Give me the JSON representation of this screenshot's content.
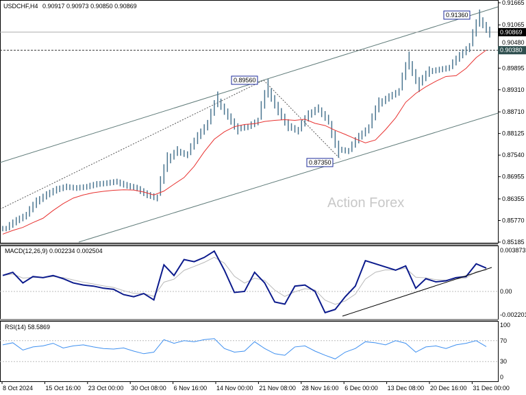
{
  "header": {
    "symbol": "USDCHF,H4",
    "ohlc": "0.90917 0.90973 0.90850 0.90869"
  },
  "watermark": "Action Forex",
  "chart_data": [
    {
      "type": "line",
      "panel": "price",
      "ylim": [
        0.85185,
        0.91665
      ],
      "y_ticks": [
        "0.91665",
        "0.91065",
        "0.90480",
        "0.89895",
        "0.89310",
        "0.88710",
        "0.88125",
        "0.87540",
        "0.86955",
        "0.86355",
        "0.85770",
        "0.85185"
      ],
      "current_price": "0.90869",
      "level_price": "0.90380",
      "annotations": [
        "0.91360",
        "0.89560",
        "0.87350"
      ],
      "close": [
        0.8555,
        0.8575,
        0.859,
        0.8625,
        0.8645,
        0.866,
        0.8668,
        0.8665,
        0.8668,
        0.8675,
        0.8678,
        0.8682,
        0.8672,
        0.8665,
        0.8648,
        0.8638,
        0.8735,
        0.8765,
        0.8755,
        0.88,
        0.8835,
        0.8905,
        0.8865,
        0.8825,
        0.883,
        0.8845,
        0.8935,
        0.888,
        0.8835,
        0.882,
        0.886,
        0.888,
        0.885,
        0.877,
        0.8765,
        0.88,
        0.8825,
        0.889,
        0.891,
        0.8925,
        0.901,
        0.8945,
        0.898,
        0.8985,
        0.899,
        0.902,
        0.9045,
        0.9125,
        0.9087
      ],
      "colors": {
        "bars": "#4a7590",
        "ma": "#e8312f",
        "channel": "#5e7a78"
      }
    },
    {
      "type": "line",
      "panel": "macd",
      "label": "MACD(12,26,9) 0.002234 0.002504",
      "ylim": [
        -0.002201,
        0.003873
      ],
      "y_ticks": [
        "0.003873",
        "0.00",
        "-0.002201"
      ],
      "values": [
        0.0015,
        0.0018,
        0.0008,
        0.0014,
        0.0013,
        0.0015,
        0.0012,
        0.0008,
        0.0006,
        0.0005,
        0.0003,
        0.0002,
        -0.0003,
        -0.0005,
        -0.0002,
        -0.0008,
        0.0025,
        0.0015,
        0.003,
        0.0028,
        0.0032,
        0.0038,
        0.002,
        -0.0001,
        0.0,
        0.0018,
        0.0008,
        -0.001,
        -0.0012,
        0.0005,
        0.0006,
        0.0,
        -0.002,
        -0.0017,
        -0.0005,
        0.0005,
        0.0029,
        0.0026,
        0.0023,
        0.002,
        0.0024,
        0.0003,
        0.0012,
        0.0009,
        0.001,
        0.0013,
        0.0014,
        0.0026,
        0.0022
      ],
      "colors": {
        "macd": "#0b1a8c",
        "signal": "#b8b8b8"
      }
    },
    {
      "type": "line",
      "panel": "rsi",
      "label": "RSI(14) 58.5869",
      "ylim": [
        0,
        100
      ],
      "y_ticks": [
        "100",
        "70",
        "30",
        "0"
      ],
      "values": [
        62,
        66,
        52,
        58,
        60,
        65,
        56,
        60,
        62,
        58,
        55,
        54,
        56,
        50,
        45,
        48,
        72,
        65,
        70,
        68,
        72,
        74,
        55,
        48,
        50,
        68,
        55,
        45,
        42,
        58,
        60,
        50,
        42,
        35,
        48,
        55,
        68,
        66,
        62,
        70,
        65,
        48,
        58,
        60,
        55,
        62,
        65,
        70,
        58.6
      ],
      "colors": {
        "rsi": "#3d8ff0"
      }
    },
    {
      "x_ticks": [
        "8 Oct 2024",
        "15 Oct 16:00",
        "23 Oct 00:00",
        "30 Oct 08:00",
        "6 Nov 16:00",
        "14 Nov 00:00",
        "21 Nov 08:00",
        "28 Nov 16:00",
        "6 Dec 00:00",
        "13 Dec 08:00",
        "20 Dec 16:00",
        "31 Dec 00:00"
      ]
    }
  ]
}
